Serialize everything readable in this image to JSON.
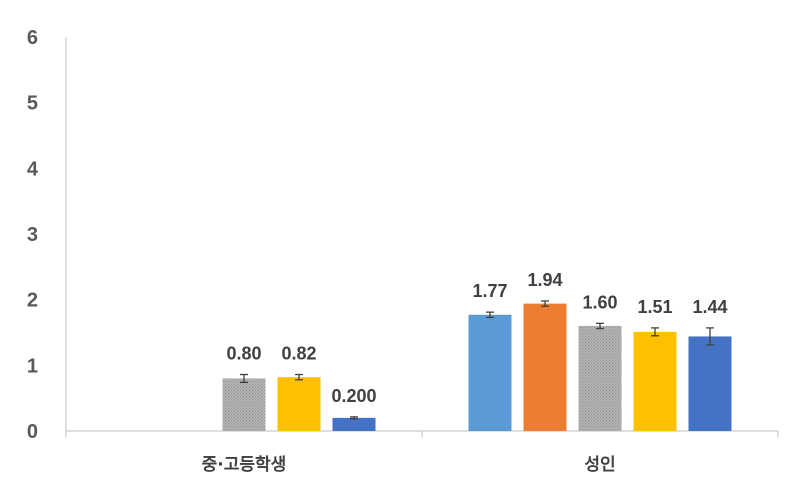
{
  "chart_data": {
    "type": "bar",
    "categories": [
      "중·고등학생",
      "성인"
    ],
    "ylim": [
      0,
      6
    ],
    "y_ticks": [
      "0",
      "1",
      "2",
      "3",
      "4",
      "5",
      "6"
    ],
    "grid": false,
    "legend": "none",
    "series": [
      {
        "color": "#5B9BD5",
        "pattern": "solid",
        "values": [
          null,
          1.77
        ],
        "errors": [
          null,
          0.04
        ],
        "labels": [
          "",
          "1.77"
        ]
      },
      {
        "color": "#ED7D31",
        "pattern": "solid",
        "values": [
          null,
          1.94
        ],
        "errors": [
          null,
          0.04
        ],
        "labels": [
          "",
          "1.94"
        ]
      },
      {
        "color": "#A5A5A5",
        "pattern": "dotted",
        "values": [
          0.8,
          1.6
        ],
        "errors": [
          0.06,
          0.04
        ],
        "labels": [
          "0.80",
          "1.60"
        ]
      },
      {
        "color": "#FFC000",
        "pattern": "solid",
        "values": [
          0.82,
          1.51
        ],
        "errors": [
          0.04,
          0.06
        ],
        "labels": [
          "0.82",
          "1.51"
        ]
      },
      {
        "color": "#4472C4",
        "pattern": "solid",
        "values": [
          0.2,
          1.44
        ],
        "errors": [
          0.015,
          0.13
        ],
        "labels": [
          "0.200",
          "1.44"
        ]
      }
    ]
  }
}
